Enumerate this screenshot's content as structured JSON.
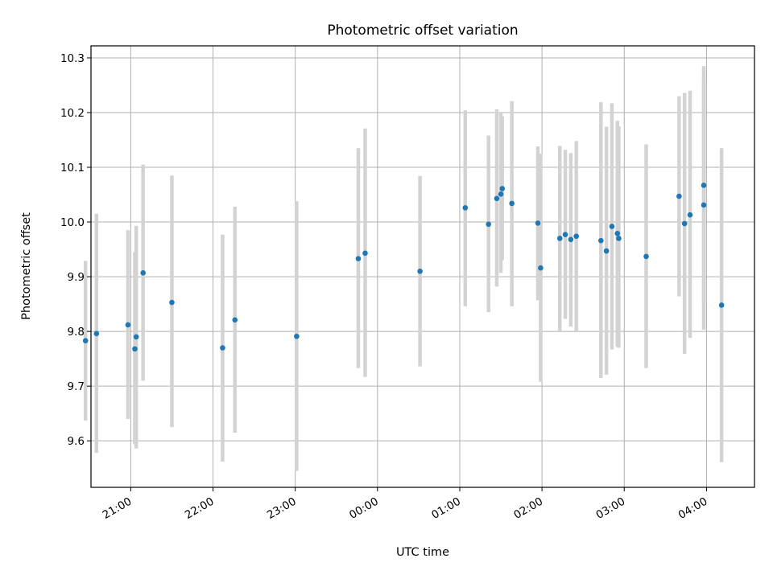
{
  "chart_data": {
    "type": "scatter",
    "title": "Photometric offset variation",
    "xlabel": "UTC time",
    "ylabel": "Photometric offset",
    "x_tick_labels": [
      "21:00",
      "22:00",
      "23:00",
      "00:00",
      "01:00",
      "02:00",
      "03:00",
      "04:00"
    ],
    "y_ticks": [
      9.6,
      9.7,
      9.8,
      9.9,
      10.0,
      10.1,
      10.2,
      10.3
    ],
    "y_tick_labels": [
      "9.6",
      "9.7",
      "9.8",
      "9.9",
      "10.0",
      "10.1",
      "10.2",
      "10.3"
    ],
    "xlim": [
      "20:31",
      "04:35"
    ],
    "ylim": [
      9.515,
      10.322
    ],
    "grid": true,
    "colors": {
      "point": "#1f77b4",
      "errorbar": "#d3d3d3",
      "grid": "#b0b0b0"
    },
    "points": [
      {
        "x": "20:27",
        "y": 9.783,
        "lo": 9.637,
        "hi": 9.929
      },
      {
        "x": "20:35",
        "y": 9.796,
        "lo": 9.578,
        "hi": 10.015
      },
      {
        "x": "20:58",
        "y": 9.812,
        "lo": 9.64,
        "hi": 9.985
      },
      {
        "x": "21:03",
        "y": 9.768,
        "lo": 9.594,
        "hi": 9.945
      },
      {
        "x": "21:04",
        "y": 9.79,
        "lo": 9.586,
        "hi": 9.993
      },
      {
        "x": "21:09",
        "y": 9.907,
        "lo": 9.71,
        "hi": 10.105
      },
      {
        "x": "21:30",
        "y": 9.853,
        "lo": 9.625,
        "hi": 10.085
      },
      {
        "x": "22:07",
        "y": 9.77,
        "lo": 9.562,
        "hi": 9.977
      },
      {
        "x": "22:16",
        "y": 9.821,
        "lo": 9.615,
        "hi": 10.028
      },
      {
        "x": "23:01",
        "y": 9.791,
        "lo": 9.545,
        "hi": 10.038
      },
      {
        "x": "23:46",
        "y": 9.933,
        "lo": 9.733,
        "hi": 10.135
      },
      {
        "x": "23:51",
        "y": 9.943,
        "lo": 9.717,
        "hi": 10.171
      },
      {
        "x": "00:31",
        "y": 9.91,
        "lo": 9.736,
        "hi": 10.084
      },
      {
        "x": "01:04",
        "y": 10.026,
        "lo": 9.846,
        "hi": 10.204
      },
      {
        "x": "01:21",
        "y": 9.996,
        "lo": 9.835,
        "hi": 10.158
      },
      {
        "x": "01:27",
        "y": 10.043,
        "lo": 9.882,
        "hi": 10.206
      },
      {
        "x": "01:30",
        "y": 10.051,
        "lo": 9.907,
        "hi": 10.2
      },
      {
        "x": "01:31",
        "y": 10.061,
        "lo": 9.93,
        "hi": 10.193
      },
      {
        "x": "01:38",
        "y": 10.034,
        "lo": 9.846,
        "hi": 10.221
      },
      {
        "x": "01:57",
        "y": 9.998,
        "lo": 9.857,
        "hi": 10.138
      },
      {
        "x": "01:59",
        "y": 9.916,
        "lo": 9.708,
        "hi": 10.125
      },
      {
        "x": "02:13",
        "y": 9.97,
        "lo": 9.801,
        "hi": 10.139
      },
      {
        "x": "02:17",
        "y": 9.977,
        "lo": 9.823,
        "hi": 10.132
      },
      {
        "x": "02:21",
        "y": 9.968,
        "lo": 9.809,
        "hi": 10.126
      },
      {
        "x": "02:25",
        "y": 9.974,
        "lo": 9.801,
        "hi": 10.148
      },
      {
        "x": "02:43",
        "y": 9.966,
        "lo": 9.715,
        "hi": 10.219
      },
      {
        "x": "02:47",
        "y": 9.947,
        "lo": 9.721,
        "hi": 10.174
      },
      {
        "x": "02:51",
        "y": 9.992,
        "lo": 9.767,
        "hi": 10.217
      },
      {
        "x": "02:55",
        "y": 9.979,
        "lo": 9.772,
        "hi": 10.185
      },
      {
        "x": "02:56",
        "y": 9.97,
        "lo": 9.77,
        "hi": 10.175
      },
      {
        "x": "03:16",
        "y": 9.937,
        "lo": 9.733,
        "hi": 10.142
      },
      {
        "x": "03:40",
        "y": 10.047,
        "lo": 9.864,
        "hi": 10.23
      },
      {
        "x": "03:44",
        "y": 9.997,
        "lo": 9.759,
        "hi": 10.236
      },
      {
        "x": "03:48",
        "y": 10.013,
        "lo": 9.788,
        "hi": 10.24
      },
      {
        "x": "03:58",
        "y": 10.067,
        "lo": 9.85,
        "hi": 10.285
      },
      {
        "x": "03:58",
        "y": 10.031,
        "lo": 9.803,
        "hi": 10.261
      },
      {
        "x": "04:11",
        "y": 9.848,
        "lo": 9.561,
        "hi": 10.135
      }
    ]
  }
}
